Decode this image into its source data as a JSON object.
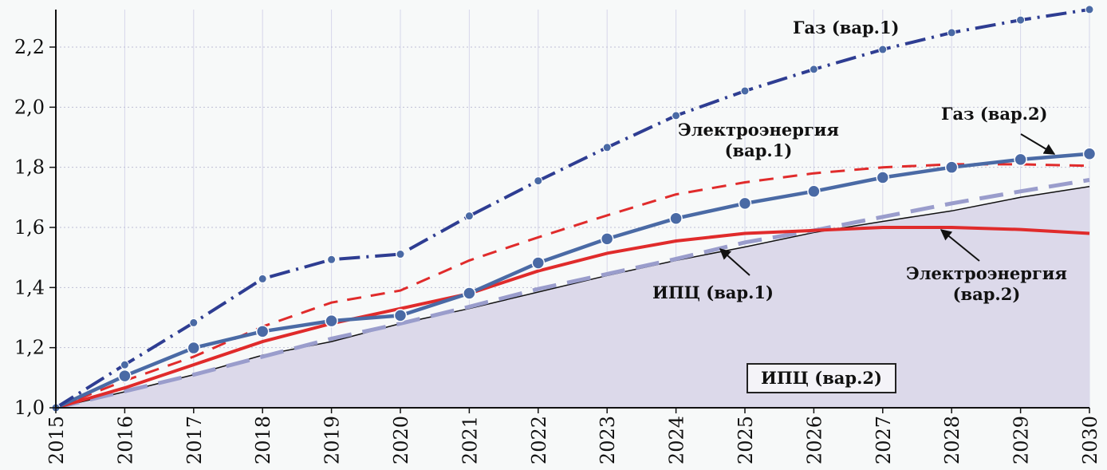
{
  "chart_data": {
    "type": "line",
    "title": "",
    "xlabel": "",
    "ylabel": "",
    "x": [
      2015,
      2016,
      2017,
      2018,
      2019,
      2020,
      2021,
      2022,
      2023,
      2024,
      2025,
      2026,
      2027,
      2028,
      2029,
      2030
    ],
    "xlim": [
      2015,
      2030
    ],
    "ylim": [
      1.0,
      2.33
    ],
    "y_ticks": [
      "1,0",
      "1,2",
      "1,4",
      "1,6",
      "1,8",
      "2,0",
      "2,2"
    ],
    "y_tick_values": [
      1.0,
      1.2,
      1.4,
      1.6,
      1.8,
      2.0,
      2.2
    ],
    "x_ticks": [
      "2015",
      "2016",
      "2017",
      "2018",
      "2019",
      "2020",
      "2021",
      "2022",
      "2023",
      "2024",
      "2025",
      "2026",
      "2027",
      "2028",
      "2029",
      "2030"
    ],
    "grid": true,
    "series": [
      {
        "name": "ИПЦ (вар.2)",
        "style": "area",
        "color": "#dcd9ea",
        "values": [
          1.0,
          1.053,
          1.11,
          1.175,
          1.22,
          1.28,
          1.33,
          1.385,
          1.44,
          1.49,
          1.535,
          1.583,
          1.62,
          1.655,
          1.7,
          1.736
        ]
      },
      {
        "name": "ИПЦ (вар.1)",
        "style": "dashed-thick",
        "color": "#9a9dcc",
        "values": [
          1.0,
          1.055,
          1.11,
          1.17,
          1.23,
          1.28,
          1.336,
          1.395,
          1.445,
          1.495,
          1.55,
          1.59,
          1.635,
          1.68,
          1.72,
          1.758
        ]
      },
      {
        "name": "Электроэнергия (вар.2)",
        "style": "solid",
        "color": "#e02b2b",
        "values": [
          1.0,
          1.066,
          1.143,
          1.22,
          1.28,
          1.33,
          1.38,
          1.455,
          1.514,
          1.555,
          1.58,
          1.59,
          1.6,
          1.6,
          1.593,
          1.58
        ]
      },
      {
        "name": "Электроэнергия (вар.1)",
        "style": "dashed",
        "color": "#e02b2b",
        "values": [
          1.0,
          1.09,
          1.17,
          1.27,
          1.35,
          1.39,
          1.49,
          1.567,
          1.64,
          1.71,
          1.75,
          1.78,
          1.8,
          1.81,
          1.81,
          1.805
        ]
      },
      {
        "name": "Газ (вар.2)",
        "style": "solid-markers",
        "color": "#4a6aa5",
        "values": [
          1.0,
          1.106,
          1.199,
          1.254,
          1.289,
          1.307,
          1.381,
          1.482,
          1.562,
          1.63,
          1.68,
          1.72,
          1.766,
          1.8,
          1.826,
          1.845
        ]
      },
      {
        "name": "Газ (вар.1)",
        "style": "dashdot-markers",
        "color": "#2e3d92",
        "values": [
          1.0,
          1.143,
          1.283,
          1.429,
          1.493,
          1.511,
          1.638,
          1.755,
          1.866,
          1.972,
          2.054,
          2.126,
          2.192,
          2.248,
          2.29,
          2.325
        ]
      }
    ],
    "annotations": {
      "gas1": "Газ (вар.1)",
      "gas2": "Газ (вар.2)",
      "el1_line1": "Электроэнергия",
      "el1_line2": "(вар.1)",
      "el2_line1": "Электроэнергия",
      "el2_line2": "(вар.2)",
      "cpi1": "ИПЦ (вар.1)",
      "cpi2": "ИПЦ (вар.2)"
    }
  }
}
